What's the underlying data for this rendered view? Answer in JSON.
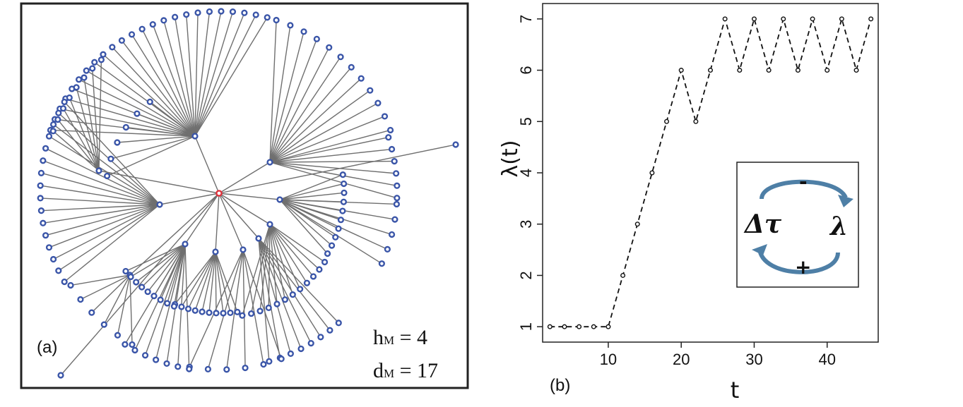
{
  "panel_a": {
    "label": "(a)",
    "h_main": "h",
    "h_sub": "M",
    "h_rest": " = 4",
    "d_main": "d",
    "d_sub": "M",
    "d_rest": " = 17",
    "colors": {
      "node": "#3a55a8",
      "root": "#e0303a",
      "edge": "#6f6f6f"
    }
  },
  "panel_b": {
    "label": "(b)",
    "inset": {
      "left_symbol": "Δτ",
      "right_symbol": "λ",
      "top_sign": "-",
      "bottom_sign": "+",
      "arrow_color": "#4e7fa6"
    }
  },
  "chart_data": {
    "type": "line",
    "line_style": "dashed",
    "marker": "open-circle",
    "xlabel": "t",
    "ylabel": "λ(t)",
    "xlim": [
      1,
      47
    ],
    "ylim": [
      0.7,
      7.3
    ],
    "xticks": [
      10,
      20,
      30,
      40
    ],
    "yticks": [
      1,
      2,
      3,
      4,
      5,
      6,
      7
    ],
    "grid": false,
    "x": [
      2,
      4,
      6,
      8,
      10,
      12,
      14,
      16,
      18,
      20,
      22,
      24,
      26,
      28,
      30,
      32,
      34,
      36,
      38,
      40,
      42,
      44,
      46
    ],
    "y": [
      1,
      1,
      1,
      1,
      1,
      2,
      3,
      4,
      5,
      6,
      5,
      6,
      7,
      6,
      7,
      6,
      7,
      6,
      7,
      6,
      7,
      6,
      7
    ]
  }
}
